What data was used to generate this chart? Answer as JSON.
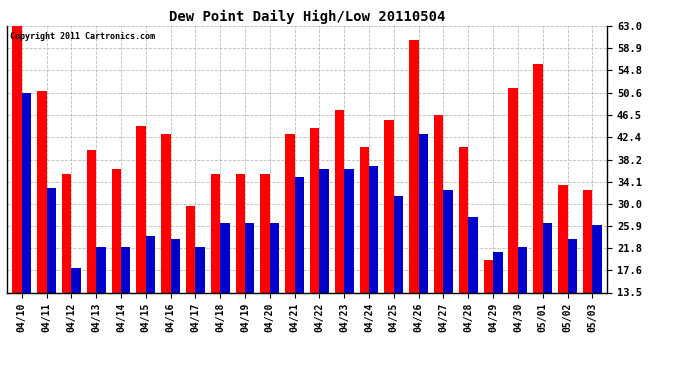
{
  "title": "Dew Point Daily High/Low 20110504",
  "copyright": "Copyright 2011 Cartronics.com",
  "dates": [
    "04/10",
    "04/11",
    "04/12",
    "04/13",
    "04/14",
    "04/15",
    "04/16",
    "04/17",
    "04/18",
    "04/19",
    "04/20",
    "04/21",
    "04/22",
    "04/23",
    "04/24",
    "04/25",
    "04/26",
    "04/27",
    "04/28",
    "04/29",
    "04/30",
    "05/01",
    "05/02",
    "05/03"
  ],
  "highs": [
    63.0,
    51.0,
    35.5,
    40.0,
    36.5,
    44.5,
    43.0,
    29.5,
    35.5,
    35.5,
    35.5,
    43.0,
    44.0,
    47.5,
    40.5,
    45.5,
    60.5,
    46.5,
    40.5,
    19.5,
    51.5,
    56.0,
    33.5,
    32.5
  ],
  "lows": [
    50.5,
    33.0,
    18.0,
    22.0,
    22.0,
    24.0,
    23.5,
    22.0,
    26.5,
    26.5,
    26.5,
    35.0,
    36.5,
    36.5,
    37.0,
    31.5,
    43.0,
    32.5,
    27.5,
    21.0,
    22.0,
    26.5,
    23.5,
    26.0
  ],
  "high_color": "#ff0000",
  "low_color": "#0000cc",
  "bg_color": "#ffffff",
  "grid_color": "#aaaaaa",
  "yticks": [
    13.5,
    17.6,
    21.8,
    25.9,
    30.0,
    34.1,
    38.2,
    42.4,
    46.5,
    50.6,
    54.8,
    58.9,
    63.0
  ],
  "ymin": 13.5,
  "ymax": 63.0,
  "bar_width": 0.38
}
